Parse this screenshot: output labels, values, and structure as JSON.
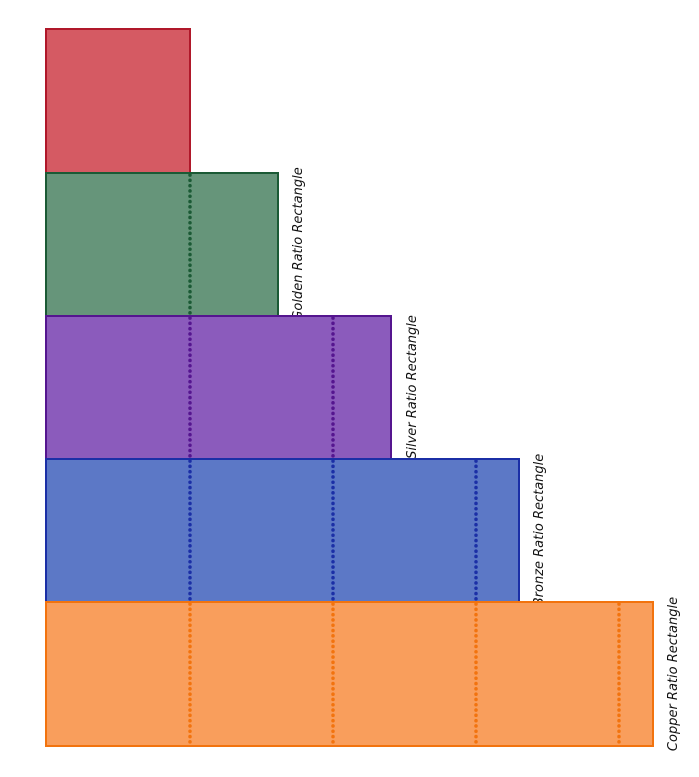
{
  "diagram": {
    "rectangles": [
      {
        "id": "square",
        "label": "",
        "fill": "#d55a63",
        "stroke": "#b0182a",
        "dot_color": null
      },
      {
        "id": "golden",
        "label": "Golden Ratio Rectangle",
        "fill": "#66957a",
        "stroke": "#1b5a35",
        "dot_color": "#1b5a35"
      },
      {
        "id": "silver",
        "label": "Silver Ratio Rectangle",
        "fill": "#8b5bbc",
        "stroke": "#55158f",
        "dot_color": "#55158f"
      },
      {
        "id": "bronze",
        "label": "Bronze Ratio Rectangle",
        "fill": "#5c78c6",
        "stroke": "#1b2fa6",
        "dot_color": "#1b2fa6"
      },
      {
        "id": "copper",
        "label": "Copper Ratio Rectangle",
        "fill": "#f99e5c",
        "stroke": "#f2730e",
        "dot_color": "#f2730e"
      }
    ]
  }
}
